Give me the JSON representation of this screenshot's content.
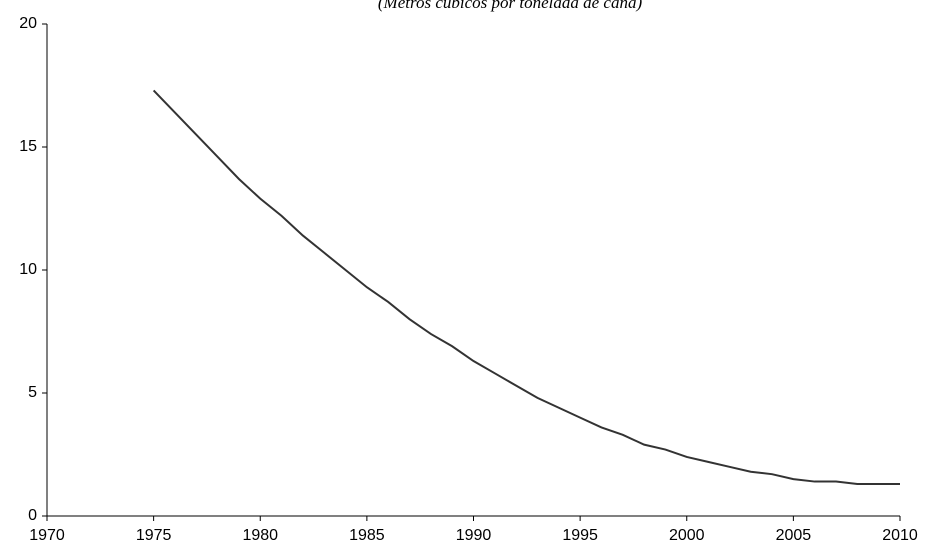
{
  "chart_data": {
    "type": "line",
    "subtitle": "(Metros cúbicos por tonelada de caña)",
    "x": [
      1975,
      1976,
      1977,
      1978,
      1979,
      1980,
      1981,
      1982,
      1983,
      1984,
      1985,
      1986,
      1987,
      1988,
      1989,
      1990,
      1991,
      1992,
      1993,
      1994,
      1995,
      1996,
      1997,
      1998,
      1999,
      2000,
      2001,
      2002,
      2003,
      2004,
      2005,
      2006,
      2007,
      2008,
      2009,
      2010
    ],
    "series": [
      {
        "color": "#333333",
        "values": [
          17.3,
          16.4,
          15.5,
          14.6,
          13.7,
          12.9,
          12.2,
          11.4,
          10.7,
          10.0,
          9.3,
          8.7,
          8.0,
          7.4,
          6.9,
          6.3,
          5.8,
          5.3,
          4.8,
          4.4,
          4.0,
          3.6,
          3.3,
          2.9,
          2.7,
          2.4,
          2.2,
          2.0,
          1.8,
          1.7,
          1.5,
          1.4,
          1.4,
          1.3,
          1.3,
          1.3
        ]
      }
    ],
    "xlim": [
      1970,
      2010
    ],
    "xticks": [
      1970,
      1975,
      1980,
      1985,
      1990,
      1995,
      2000,
      2005,
      2010
    ],
    "ylim": [
      0,
      20
    ],
    "yticks": [
      0,
      5,
      10,
      15,
      20
    ],
    "grid": false
  }
}
